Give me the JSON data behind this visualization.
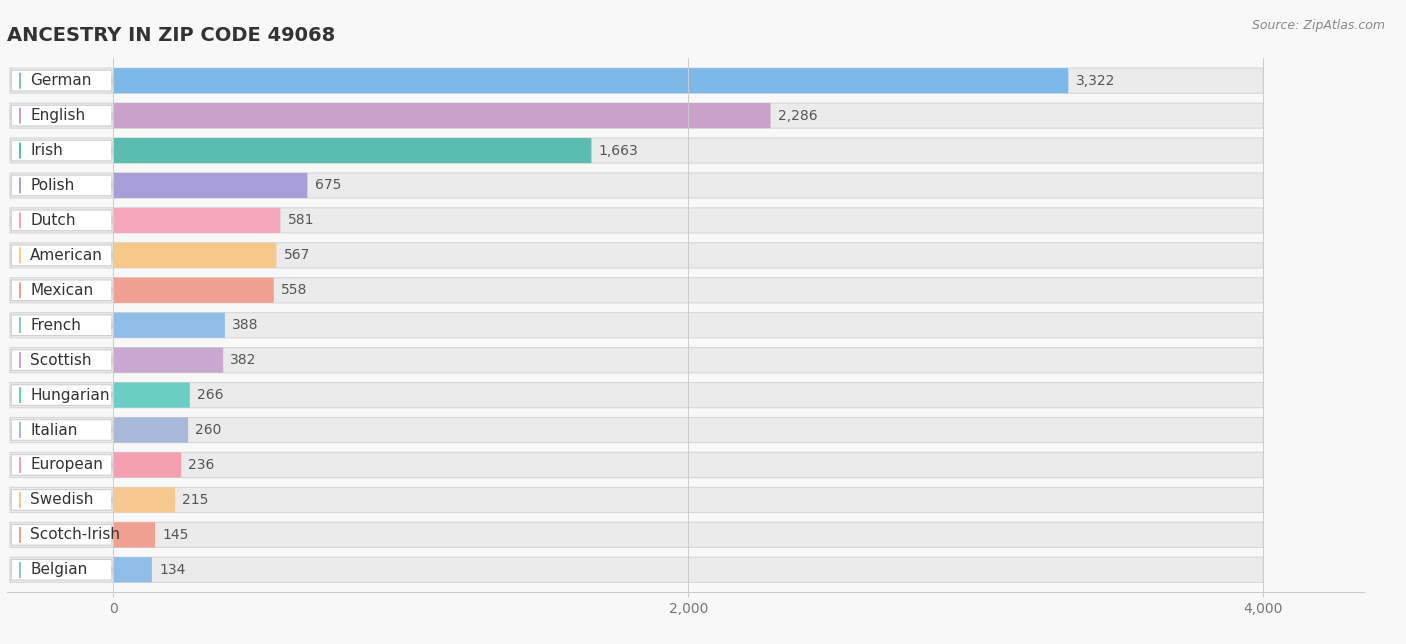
{
  "title": "ANCESTRY IN ZIP CODE 49068",
  "source": "Source: ZipAtlas.com",
  "categories": [
    "German",
    "English",
    "Irish",
    "Polish",
    "Dutch",
    "American",
    "Mexican",
    "French",
    "Scottish",
    "Hungarian",
    "Italian",
    "European",
    "Swedish",
    "Scotch-Irish",
    "Belgian"
  ],
  "values": [
    3322,
    2286,
    1663,
    675,
    581,
    567,
    558,
    388,
    382,
    266,
    260,
    236,
    215,
    145,
    134
  ],
  "colors": [
    "#7cb9e8",
    "#c8a2c8",
    "#5bbcb0",
    "#a89fd8",
    "#f4a7b9",
    "#f5c98a",
    "#f0a090",
    "#90bce8",
    "#c8a8d0",
    "#6bcec5",
    "#a8b8d8",
    "#f4a0b0",
    "#f5c890",
    "#f0a090",
    "#90bce8"
  ],
  "row_bg_color": "#ebebeb",
  "label_bg_color": "#ffffff",
  "xlim_max": 4000,
  "xticks": [
    0,
    2000,
    4000
  ],
  "background_color": "#f8f8f8",
  "title_fontsize": 14,
  "source_fontsize": 9,
  "label_fontsize": 11,
  "value_fontsize": 10
}
